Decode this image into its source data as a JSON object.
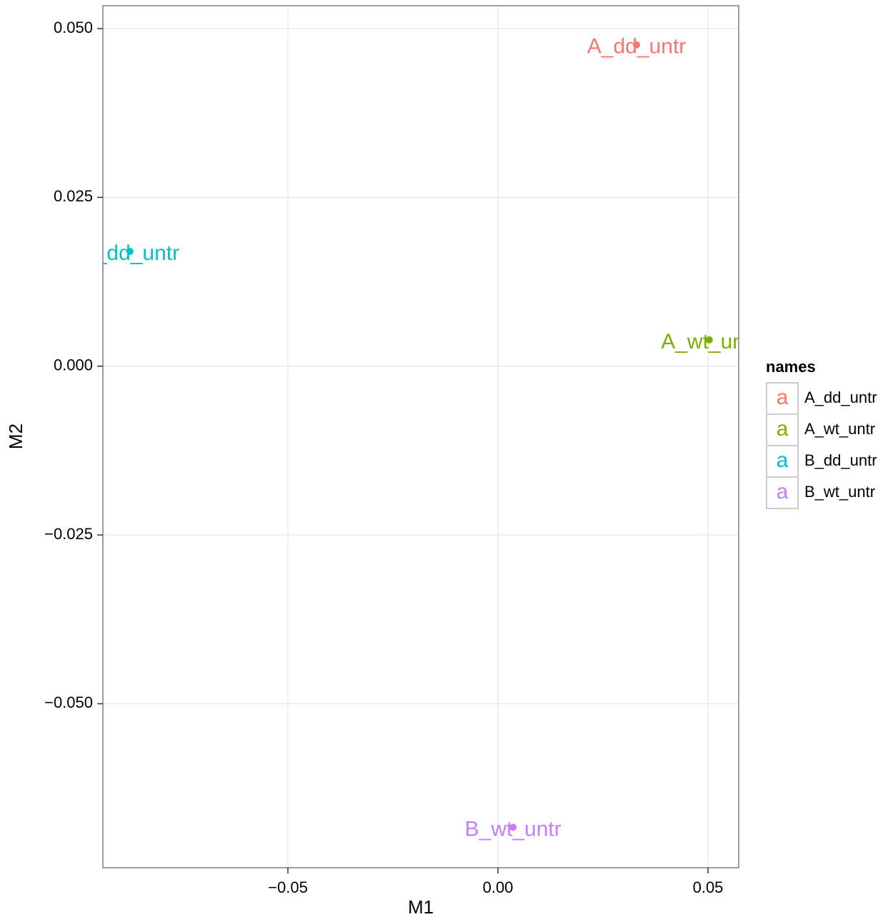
{
  "chart_data": {
    "type": "scatter",
    "x_label": "M1",
    "y_label": "M2",
    "legend_title": "names",
    "legend_position": "right",
    "legend_key": "a",
    "grid": true,
    "xlim": [
      -0.09405,
      0.05731
    ],
    "ylim": [
      -0.07429,
      0.05339
    ],
    "xticks": [
      {
        "value": -0.05,
        "label": "−0.05"
      },
      {
        "value": 0,
        "label": "0.00"
      },
      {
        "value": 0.05,
        "label": "0.05"
      }
    ],
    "yticks": [
      {
        "value": 0.05,
        "label": "0.050"
      },
      {
        "value": 0.025,
        "label": "0.025"
      },
      {
        "value": 0,
        "label": "0.000"
      },
      {
        "value": -0.025,
        "label": "−0.025"
      },
      {
        "value": -0.05,
        "label": "−0.050"
      }
    ],
    "series": [
      {
        "name": "A_dd_untr",
        "color": "#f8766d",
        "x": [
          0.033
        ],
        "values": [
          0.0476
        ]
      },
      {
        "name": "A_wt_untr",
        "color": "#7cae00",
        "x": [
          0.0503
        ],
        "values": [
          0.0039
        ]
      },
      {
        "name": "B_dd_untr",
        "color": "#00bfc4",
        "x": [
          -0.0876
        ],
        "values": [
          0.017
        ]
      },
      {
        "name": "B_wt_untr",
        "color": "#c77cff",
        "x": [
          0.0036
        ],
        "values": [
          -0.0683
        ]
      }
    ]
  }
}
